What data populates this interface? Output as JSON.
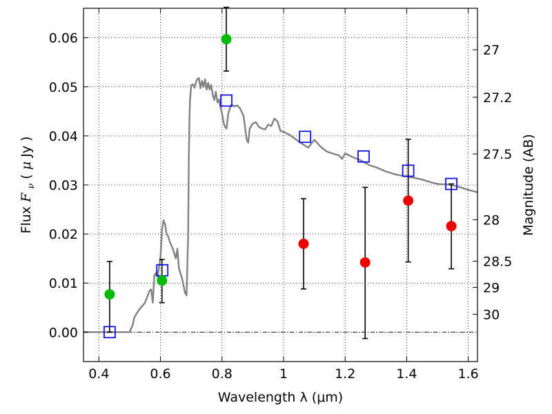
{
  "chart_data": {
    "type": "line",
    "title": "",
    "xlabel": "Wavelength  λ (μm)",
    "ylabel_parts": [
      "Flux ",
      "F",
      "ν",
      " ( ",
      "μ",
      "Jy )"
    ],
    "ylabel_right": "Magnitude (AB)",
    "xlim": [
      0.35,
      1.63
    ],
    "ylim": [
      -0.006,
      0.066
    ],
    "x_ticks": [
      0.4,
      0.6,
      0.8,
      1.0,
      1.2,
      1.4,
      1.6
    ],
    "x_tick_labels": [
      "0.4",
      "0.6",
      "0.8",
      "1",
      "1.2",
      "1.4",
      "1.6"
    ],
    "y_ticks": [
      0.0,
      0.01,
      0.02,
      0.03,
      0.04,
      0.05,
      0.06
    ],
    "y_tick_labels": [
      "0.00",
      "0.01",
      "0.02",
      "0.03",
      "0.04",
      "0.05",
      "0.06"
    ],
    "right_ticks": [
      {
        "mag": 27,
        "label": "27"
      },
      {
        "mag": 27.2,
        "label": "27.2"
      },
      {
        "mag": 27.5,
        "label": "27.5"
      },
      {
        "mag": 28,
        "label": "28"
      },
      {
        "mag": 28.5,
        "label": "28.5"
      },
      {
        "mag": 29,
        "label": "29"
      },
      {
        "mag": 30,
        "label": "30"
      }
    ],
    "grid": true,
    "colors": {
      "model": "#808080",
      "model_points": "#0000ee",
      "detections": "#00bb00",
      "upper_limits": "#ee0000",
      "errorbars": "#000000"
    },
    "series": [
      {
        "name": "model_sed",
        "style": "line",
        "x": [
          0.35,
          0.44,
          0.5,
          0.51,
          0.515,
          0.53,
          0.55,
          0.565,
          0.57,
          0.575,
          0.58,
          0.585,
          0.59,
          0.595,
          0.6,
          0.605,
          0.61,
          0.615,
          0.62,
          0.625,
          0.63,
          0.64,
          0.65,
          0.655,
          0.66,
          0.665,
          0.67,
          0.675,
          0.68,
          0.685,
          0.69,
          0.692,
          0.694,
          0.696,
          0.7,
          0.705,
          0.71,
          0.715,
          0.72,
          0.725,
          0.73,
          0.735,
          0.74,
          0.745,
          0.75,
          0.755,
          0.76,
          0.765,
          0.77,
          0.775,
          0.78,
          0.785,
          0.79,
          0.795,
          0.8,
          0.803,
          0.806,
          0.81,
          0.815,
          0.82,
          0.825,
          0.83,
          0.835,
          0.84,
          0.85,
          0.86,
          0.87,
          0.875,
          0.88,
          0.885,
          0.89,
          0.9,
          0.91,
          0.92,
          0.93,
          0.94,
          0.95,
          0.96,
          0.97,
          0.98,
          0.99,
          1.0,
          1.02,
          1.05,
          1.08,
          1.1,
          1.12,
          1.14,
          1.16,
          1.18,
          1.19,
          1.2,
          1.22,
          1.25,
          1.28,
          1.3,
          1.33,
          1.36,
          1.39,
          1.42,
          1.45,
          1.48,
          1.5,
          1.53,
          1.56,
          1.58,
          1.6,
          1.63
        ],
        "y": [
          0.0,
          0.0,
          0.0,
          0.0015,
          0.003,
          0.0045,
          0.006,
          0.0085,
          0.0087,
          0.006,
          0.0115,
          0.012,
          0.0113,
          0.013,
          0.015,
          0.021,
          0.0228,
          0.022,
          0.02,
          0.0195,
          0.0185,
          0.017,
          0.015,
          0.017,
          0.013,
          0.012,
          0.011,
          0.0095,
          0.008,
          0.0075,
          0.02,
          0.035,
          0.043,
          0.047,
          0.0503,
          0.0505,
          0.0498,
          0.0508,
          0.0516,
          0.0518,
          0.0497,
          0.0512,
          0.05,
          0.0515,
          0.0494,
          0.0508,
          0.0494,
          0.0504,
          0.0483,
          0.0473,
          0.049,
          0.0468,
          0.0474,
          0.0458,
          0.0446,
          0.0435,
          0.0425,
          0.0418,
          0.0415,
          0.0445,
          0.0455,
          0.0463,
          0.0462,
          0.046,
          0.0462,
          0.0455,
          0.044,
          0.0417,
          0.0393,
          0.0386,
          0.0415,
          0.0425,
          0.0428,
          0.0418,
          0.0415,
          0.0413,
          0.0423,
          0.042,
          0.0435,
          0.043,
          0.041,
          0.0408,
          0.0402,
          0.0388,
          0.0376,
          0.0392,
          0.0378,
          0.0368,
          0.0364,
          0.036,
          0.0353,
          0.0364,
          0.0358,
          0.035,
          0.034,
          0.0336,
          0.0328,
          0.0322,
          0.0318,
          0.0315,
          0.0311,
          0.0305,
          0.0302,
          0.0301,
          0.0298,
          0.0294,
          0.029,
          0.0285
        ]
      },
      {
        "name": "model_band_flux",
        "style": "open_square",
        "x": [
          0.435,
          0.606,
          0.814,
          1.07,
          1.26,
          1.405,
          1.545
        ],
        "y": [
          0.0,
          0.0126,
          0.0472,
          0.0398,
          0.0358,
          0.0329,
          0.0302
        ]
      },
      {
        "name": "detections",
        "style": "filled_circle",
        "x": [
          0.435,
          0.605,
          0.814
        ],
        "y": [
          0.0077,
          0.0105,
          0.0597
        ],
        "yerr_low": [
          0.0077,
          0.0045,
          0.0065
        ],
        "yerr_high": [
          0.0067,
          0.0043,
          0.0065
        ]
      },
      {
        "name": "upper_limits",
        "style": "filled_circle",
        "x": [
          1.065,
          1.265,
          1.405,
          1.545
        ],
        "y": [
          0.018,
          0.0142,
          0.0268,
          0.0216
        ],
        "yerr_low": [
          0.0092,
          0.0155,
          0.0125,
          0.0087
        ],
        "yerr_high": [
          0.0092,
          0.0153,
          0.0125,
          0.0086
        ]
      }
    ]
  }
}
